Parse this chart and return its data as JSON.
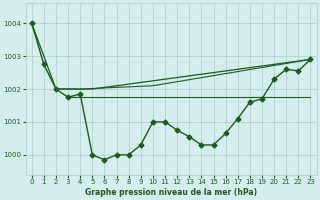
{
  "title": "Graphe pression niveau de la mer (hPa)",
  "background_color": "#d4eeed",
  "grid_color": "#a8cece",
  "line_color": "#1a5c1a",
  "xlim": [
    -0.5,
    23.5
  ],
  "ylim": [
    999.4,
    1004.6
  ],
  "yticks": [
    1000,
    1001,
    1002,
    1003,
    1004
  ],
  "xticks": [
    0,
    1,
    2,
    3,
    4,
    5,
    6,
    7,
    8,
    9,
    10,
    11,
    12,
    13,
    14,
    15,
    16,
    17,
    18,
    19,
    20,
    21,
    22,
    23
  ],
  "main_series": {
    "x": [
      0,
      1,
      2,
      3,
      4,
      5,
      6,
      7,
      8,
      9,
      10,
      11,
      12,
      13,
      14,
      15,
      16,
      17,
      18,
      19,
      20,
      21,
      22,
      23
    ],
    "y": [
      1004.0,
      1002.75,
      1002.0,
      1001.75,
      1001.85,
      1000.0,
      999.85,
      1000.0,
      1000.0,
      1000.3,
      1001.0,
      1001.0,
      1000.75,
      1000.55,
      1000.3,
      1000.3,
      1000.65,
      1001.1,
      1001.6,
      1001.7,
      1002.3,
      1002.6,
      1002.55,
      1002.9
    ],
    "marker": "D",
    "markersize": 2.5,
    "linewidth": 1.0
  },
  "envelope_lines": [
    {
      "x": [
        0,
        2,
        5,
        23
      ],
      "y": [
        1004.0,
        1002.0,
        1002.0,
        1002.9
      ],
      "linewidth": 0.9
    },
    {
      "x": [
        2,
        4,
        10,
        23
      ],
      "y": [
        1002.0,
        1002.0,
        1002.1,
        1002.9
      ],
      "linewidth": 0.8
    },
    {
      "x": [
        3,
        18,
        23
      ],
      "y": [
        1001.75,
        1001.75,
        1001.75
      ],
      "linewidth": 0.8
    }
  ]
}
